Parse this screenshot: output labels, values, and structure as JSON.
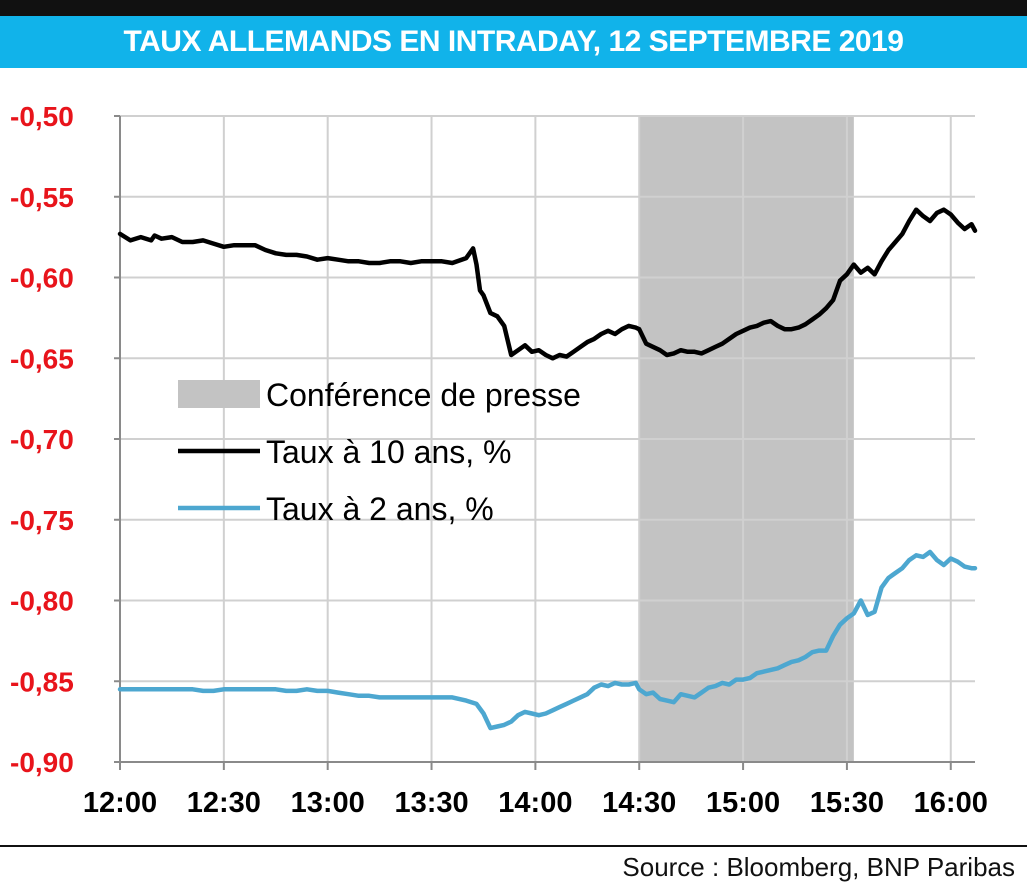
{
  "chart_data": {
    "type": "line",
    "title": "TAUX ALLEMANDS EN INTRADAY, 12 SEPTEMBRE 2019",
    "source": "Source : Bloomberg, BNP Paribas",
    "x_ticks": [
      "12:00",
      "12:30",
      "13:00",
      "13:30",
      "14:00",
      "14:30",
      "15:00",
      "15:30",
      "16:00"
    ],
    "y_ticks": [
      "-0,50",
      "-0,55",
      "-0,60",
      "-0,65",
      "-0,70",
      "-0,75",
      "-0,80",
      "-0,85",
      "-0,90"
    ],
    "ylim": [
      -0.9,
      -0.5
    ],
    "xlim_minutes": [
      0,
      247
    ],
    "grid": true,
    "legend_position": "center-left",
    "shaded_band": {
      "label": "Conférence de presse",
      "start": "14:30",
      "end": "15:32",
      "start_min": 150,
      "end_min": 212,
      "color": "#c3c3c3"
    },
    "series": [
      {
        "name": "Taux à 10 ans, %",
        "color": "#000000",
        "x": [
          0,
          3,
          6,
          9,
          10,
          12,
          15,
          18,
          21,
          24,
          27,
          30,
          33,
          36,
          39,
          42,
          45,
          48,
          51,
          54,
          57,
          60,
          63,
          66,
          69,
          72,
          75,
          78,
          81,
          84,
          87,
          90,
          93,
          96,
          100,
          102,
          103,
          104,
          105,
          107,
          109,
          111,
          113,
          115,
          117,
          119,
          121,
          123,
          125,
          127,
          129,
          131,
          133,
          135,
          137,
          139,
          141,
          143,
          145,
          147,
          149,
          150,
          152,
          154,
          156,
          158,
          160,
          162,
          164,
          166,
          168,
          170,
          172,
          174,
          176,
          178,
          180,
          182,
          184,
          186,
          188,
          190,
          192,
          194,
          196,
          198,
          200,
          202,
          204,
          206,
          208,
          210,
          212,
          214,
          216,
          218,
          220,
          222,
          224,
          226,
          228,
          230,
          232,
          234,
          236,
          238,
          240,
          242,
          244,
          246,
          247
        ],
        "values": [
          -0.573,
          -0.577,
          -0.575,
          -0.577,
          -0.574,
          -0.576,
          -0.575,
          -0.578,
          -0.578,
          -0.577,
          -0.579,
          -0.581,
          -0.58,
          -0.58,
          -0.58,
          -0.583,
          -0.585,
          -0.586,
          -0.586,
          -0.587,
          -0.589,
          -0.588,
          -0.589,
          -0.59,
          -0.59,
          -0.591,
          -0.591,
          -0.59,
          -0.59,
          -0.591,
          -0.59,
          -0.59,
          -0.59,
          -0.591,
          -0.588,
          -0.582,
          -0.592,
          -0.608,
          -0.611,
          -0.622,
          -0.624,
          -0.63,
          -0.648,
          -0.645,
          -0.642,
          -0.646,
          -0.645,
          -0.648,
          -0.65,
          -0.648,
          -0.649,
          -0.646,
          -0.643,
          -0.64,
          -0.638,
          -0.635,
          -0.633,
          -0.635,
          -0.632,
          -0.63,
          -0.631,
          -0.632,
          -0.641,
          -0.643,
          -0.645,
          -0.648,
          -0.647,
          -0.645,
          -0.646,
          -0.646,
          -0.647,
          -0.645,
          -0.643,
          -0.641,
          -0.638,
          -0.635,
          -0.633,
          -0.631,
          -0.63,
          -0.628,
          -0.627,
          -0.63,
          -0.632,
          -0.632,
          -0.631,
          -0.629,
          -0.626,
          -0.623,
          -0.619,
          -0.614,
          -0.602,
          -0.598,
          -0.592,
          -0.597,
          -0.594,
          -0.598,
          -0.59,
          -0.583,
          -0.578,
          -0.573,
          -0.565,
          -0.558,
          -0.562,
          -0.565,
          -0.56,
          -0.558,
          -0.561,
          -0.566,
          -0.57,
          -0.567,
          -0.571
        ]
      },
      {
        "name": "Taux à 2 ans, %",
        "color": "#4da7d0",
        "x": [
          0,
          3,
          6,
          9,
          12,
          15,
          18,
          21,
          24,
          27,
          30,
          33,
          36,
          39,
          42,
          45,
          48,
          51,
          54,
          57,
          60,
          63,
          66,
          69,
          72,
          75,
          78,
          81,
          84,
          87,
          90,
          93,
          96,
          100,
          103,
          105,
          107,
          109,
          111,
          113,
          115,
          117,
          119,
          121,
          123,
          125,
          127,
          129,
          131,
          133,
          135,
          137,
          139,
          141,
          143,
          145,
          147,
          149,
          150,
          152,
          154,
          156,
          158,
          160,
          162,
          164,
          166,
          168,
          170,
          172,
          174,
          176,
          178,
          180,
          182,
          184,
          186,
          188,
          190,
          192,
          194,
          196,
          198,
          200,
          202,
          204,
          206,
          208,
          210,
          212,
          214,
          216,
          218,
          220,
          222,
          224,
          226,
          228,
          230,
          232,
          234,
          236,
          238,
          240,
          242,
          244,
          246,
          247
        ],
        "values": [
          -0.855,
          -0.855,
          -0.855,
          -0.855,
          -0.855,
          -0.855,
          -0.855,
          -0.855,
          -0.856,
          -0.856,
          -0.855,
          -0.855,
          -0.855,
          -0.855,
          -0.855,
          -0.855,
          -0.856,
          -0.856,
          -0.855,
          -0.856,
          -0.856,
          -0.857,
          -0.858,
          -0.859,
          -0.859,
          -0.86,
          -0.86,
          -0.86,
          -0.86,
          -0.86,
          -0.86,
          -0.86,
          -0.86,
          -0.862,
          -0.864,
          -0.87,
          -0.879,
          -0.878,
          -0.877,
          -0.875,
          -0.871,
          -0.869,
          -0.87,
          -0.871,
          -0.87,
          -0.868,
          -0.866,
          -0.864,
          -0.862,
          -0.86,
          -0.858,
          -0.854,
          -0.852,
          -0.853,
          -0.851,
          -0.852,
          -0.852,
          -0.851,
          -0.855,
          -0.858,
          -0.857,
          -0.861,
          -0.862,
          -0.863,
          -0.858,
          -0.859,
          -0.86,
          -0.857,
          -0.854,
          -0.853,
          -0.851,
          -0.852,
          -0.849,
          -0.849,
          -0.848,
          -0.845,
          -0.844,
          -0.843,
          -0.842,
          -0.84,
          -0.838,
          -0.837,
          -0.835,
          -0.832,
          -0.831,
          -0.831,
          -0.822,
          -0.815,
          -0.811,
          -0.808,
          -0.8,
          -0.809,
          -0.807,
          -0.792,
          -0.786,
          -0.783,
          -0.78,
          -0.775,
          -0.772,
          -0.773,
          -0.77,
          -0.775,
          -0.778,
          -0.774,
          -0.776,
          -0.779,
          -0.78,
          -0.78
        ]
      }
    ]
  }
}
